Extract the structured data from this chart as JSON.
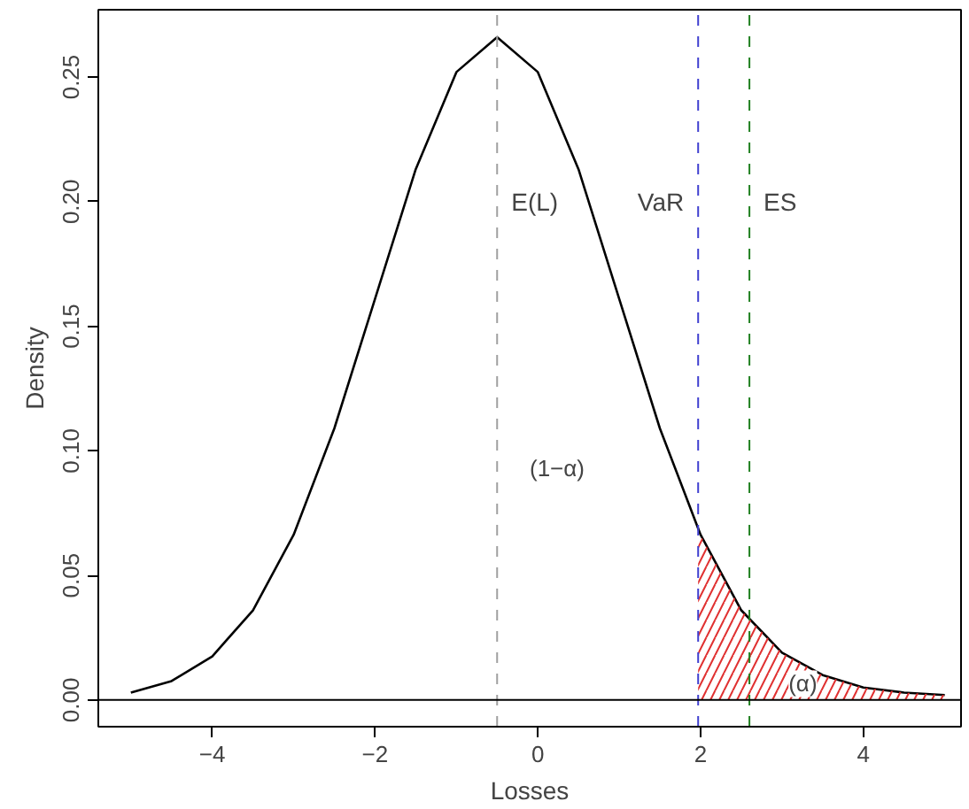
{
  "chart_data": {
    "type": "line",
    "xlabel": "Losses",
    "ylabel": "Density",
    "x": [
      -5,
      -4.5,
      -4,
      -3.5,
      -3,
      -2.5,
      -2,
      -1.5,
      -1,
      -0.5,
      0,
      0.5,
      1,
      1.5,
      2,
      2.5,
      3,
      3.5,
      4,
      4.5,
      5
    ],
    "series": [
      {
        "color": "#000000",
        "values": [
          0.003,
          0.0076,
          0.0175,
          0.036,
          0.0663,
          0.109,
          0.161,
          0.213,
          0.252,
          0.266,
          0.252,
          0.213,
          0.161,
          0.109,
          0.0663,
          0.036,
          0.019,
          0.01,
          0.005,
          0.003,
          0.002
        ]
      },
      {
        "type": "area",
        "color": "#e03030",
        "x": [
          1.97,
          2.5,
          3,
          3.5,
          4,
          4.5,
          5
        ],
        "values": [
          0.068,
          0.036,
          0.019,
          0.01,
          0.005,
          0.003,
          0.002
        ]
      }
    ],
    "xlim": [
      -5.4,
      5.2
    ],
    "ylim": [
      -0.0107,
      0.277
    ],
    "xticks": [
      -4,
      -2,
      0,
      2,
      4
    ],
    "yticks": [
      {
        "value": 0,
        "label": "0.00"
      },
      0.05,
      {
        "value": 0.1,
        "label": "0.10"
      },
      0.15,
      {
        "value": 0.2,
        "label": "0.20"
      },
      0.25
    ],
    "grid": false,
    "marker": "none",
    "line_style": "solid",
    "ref_lines": [
      {
        "axis": "x",
        "value": -0.5,
        "label": "E(L)",
        "color": "#a0a0a0",
        "line_style": "dashed"
      },
      {
        "axis": "x",
        "value": 1.97,
        "label": "VaR",
        "color": "#4040d0",
        "line_style": "dashed"
      },
      {
        "axis": "x",
        "value": 2.6,
        "label": "ES",
        "color": "#208020",
        "line_style": "dashed"
      },
      {
        "axis": "y",
        "value": 0,
        "label": null,
        "color": "#000000",
        "line_style": "solid"
      }
    ],
    "annotations": [
      "(1−α)",
      "(α)"
    ]
  }
}
